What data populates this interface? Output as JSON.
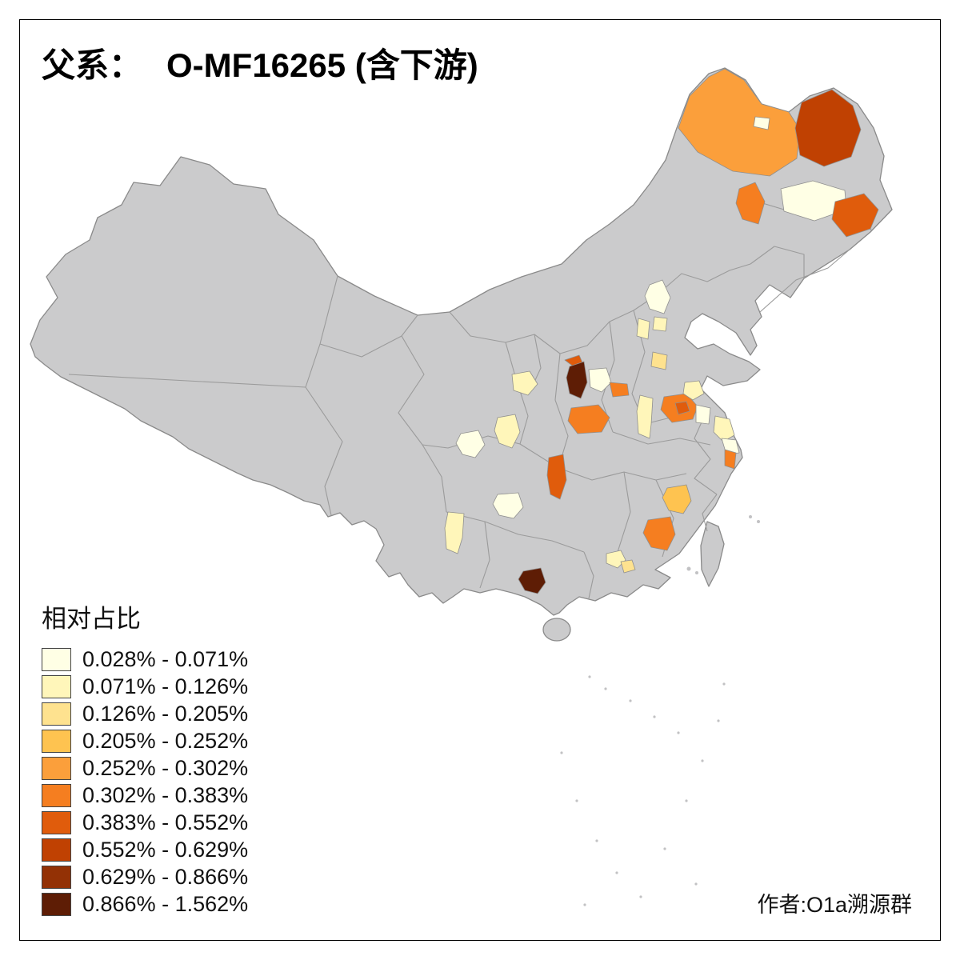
{
  "title": {
    "prefix": "父系：",
    "code": "O-MF16265 (含下游)"
  },
  "attribution": "作者:O1a溯源群",
  "chart_data": {
    "type": "choropleth",
    "title": "父系： O-MF16265 (含下游)",
    "legend": {
      "title": "相对占比",
      "bins": [
        {
          "range": "0.028% - 0.071%",
          "color": "#FFFFE5"
        },
        {
          "range": "0.071% - 0.126%",
          "color": "#FFF6BA"
        },
        {
          "range": "0.126% - 0.205%",
          "color": "#FEE28F"
        },
        {
          "range": "0.205% - 0.252%",
          "color": "#FEC350"
        },
        {
          "range": "0.252% - 0.302%",
          "color": "#FB9F3B"
        },
        {
          "range": "0.302% - 0.383%",
          "color": "#F57E20"
        },
        {
          "range": "0.383% - 0.552%",
          "color": "#E05C0C"
        },
        {
          "range": "0.552% - 0.629%",
          "color": "#C04102"
        },
        {
          "range": "0.629% - 0.866%",
          "color": "#933105"
        },
        {
          "range": "0.866% - 1.562%",
          "color": "#5E1D05"
        }
      ]
    },
    "colors": {
      "land": "#CBCBCC",
      "boundary": "#9B9B9B",
      "background": "#FFFFFF",
      "frame": "#000000"
    }
  }
}
